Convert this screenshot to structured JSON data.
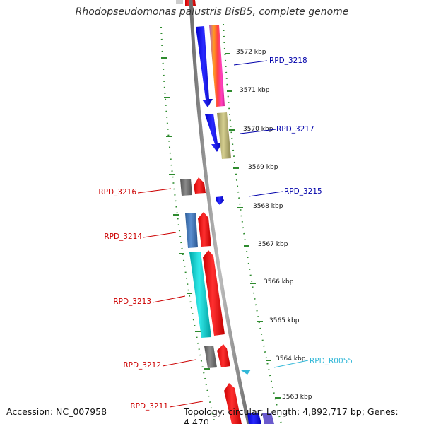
{
  "title": "Rhodopseudomonas palustris BisB5, complete genome",
  "footer": {
    "accession": "Accession: NC_007958",
    "summary": "Topology: circular; Length: 4,892,717 bp; Genes: 4,470"
  },
  "colors": {
    "backbone": "#8a8a8a",
    "ticks": "#2e8b2e",
    "blue_label": "#0000aa",
    "red_label": "#cc0000",
    "cyan_label": "#33b8d8"
  },
  "kbp_labels": [
    "3572 kbp",
    "3571 kbp",
    "3570 kbp",
    "3569 kbp",
    "3568 kbp",
    "3567 kbp",
    "3566 kbp",
    "3565 kbp",
    "3564 kbp",
    "3563 kbp"
  ],
  "gene_labels": {
    "RPD_3218": "RPD_3218",
    "RPD_3217": "RPD_3217",
    "RPD_3215": "RPD_3215",
    "RPD_R0055": "RPD_R0055",
    "RPD_3216": "RPD_3216",
    "RPD_3214": "RPD_3214",
    "RPD_3213": "RPD_3213",
    "RPD_3212": "RPD_3212",
    "RPD_3211": "RPD_3211"
  }
}
